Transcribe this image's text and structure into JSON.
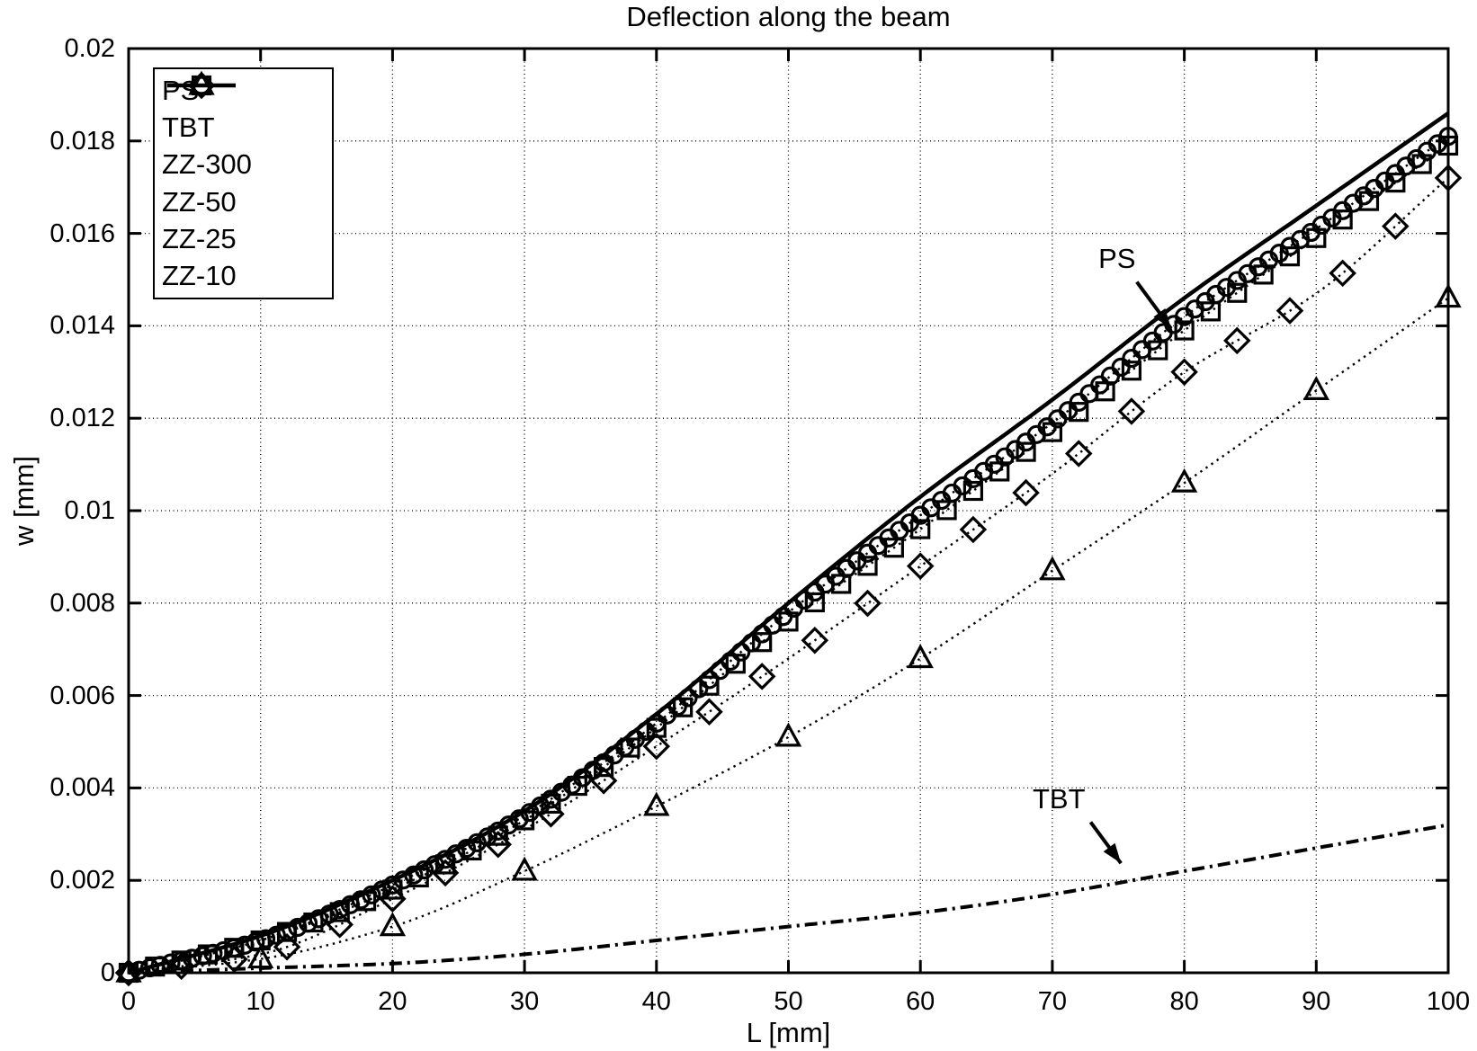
{
  "colors": {
    "foreground": "#000000",
    "background": "#ffffff"
  },
  "legend": {
    "position": "top-left",
    "entries": [
      "PS",
      "TBT",
      "ZZ-300",
      "ZZ-50",
      "ZZ-25",
      "ZZ-10"
    ]
  },
  "annotations": [
    {
      "text": "PS",
      "text_at": {
        "L": 74.9,
        "w": 0.01545
      },
      "arrow_from": {
        "L": 76.4,
        "w": 0.01495
      },
      "arrow_to": {
        "L": 79.0,
        "w": 0.01394
      }
    },
    {
      "text": "TBT",
      "text_at": {
        "L": 70.5,
        "w": 0.00375
      },
      "arrow_from": {
        "L": 72.9,
        "w": 0.00326
      },
      "arrow_to": {
        "L": 75.2,
        "w": 0.00237
      }
    }
  ],
  "chart_data": {
    "type": "line",
    "title": "Deflection along the beam",
    "xlabel": "L [mm]",
    "ylabel": "w [mm]",
    "xlim": [
      0,
      100
    ],
    "ylim": [
      0,
      0.02
    ],
    "grid": true,
    "x_ticks": {
      "values": [
        0,
        10,
        20,
        30,
        40,
        50,
        60,
        70,
        80,
        90,
        100
      ],
      "labels": [
        "0",
        "10",
        "20",
        "30",
        "40",
        "50",
        "60",
        "70",
        "80",
        "90",
        "100"
      ]
    },
    "y_ticks": {
      "values": [
        0,
        0.002,
        0.004,
        0.006,
        0.008,
        0.01,
        0.012,
        0.014,
        0.016,
        0.018,
        0.02
      ],
      "labels": [
        "0",
        "0.002",
        "0.004",
        "0.006",
        "0.008",
        "0.01",
        "0.012",
        "0.014",
        "0.016",
        "0.018",
        "0.02"
      ]
    },
    "x": [
      0,
      10,
      20,
      30,
      40,
      50,
      60,
      70,
      80,
      90,
      100
    ],
    "series": [
      {
        "name": "PS",
        "linestyle": "solid",
        "marker": "none",
        "values": [
          0,
          0.0008,
          0.002,
          0.0035,
          0.0056,
          0.008,
          0.0103,
          0.0124,
          0.0146,
          0.0166,
          0.0186
        ]
      },
      {
        "name": "TBT",
        "linestyle": "dashdot",
        "marker": "none",
        "values": [
          0,
          0.0001,
          0.0002,
          0.0004,
          0.0007,
          0.001,
          0.0013,
          0.0017,
          0.0022,
          0.0027,
          0.0032
        ]
      },
      {
        "name": "ZZ-300",
        "linestyle": "dotted",
        "marker": "circle",
        "marker_step_mm": 0.8,
        "values": [
          0,
          0.0007,
          0.0019,
          0.0034,
          0.0054,
          0.0078,
          0.0099,
          0.0119,
          0.0142,
          0.0161,
          0.0181
        ]
      },
      {
        "name": "ZZ-50",
        "linestyle": "dotted",
        "marker": "square",
        "marker_step_mm": 2,
        "values": [
          0,
          0.0007,
          0.0018,
          0.0033,
          0.0053,
          0.0076,
          0.0096,
          0.0117,
          0.0139,
          0.0159,
          0.0179
        ]
      },
      {
        "name": "ZZ-25",
        "linestyle": "dotted",
        "marker": "diamond",
        "marker_step_mm": 4,
        "values": [
          0,
          0.0004,
          0.0016,
          0.0031,
          0.0049,
          0.0068,
          0.0088,
          0.0108,
          0.013,
          0.0147,
          0.0172
        ]
      },
      {
        "name": "ZZ-10",
        "linestyle": "dotted",
        "marker": "triangle",
        "marker_step_mm": 10,
        "values": [
          0,
          0.0003,
          0.001,
          0.0022,
          0.0036,
          0.0051,
          0.0068,
          0.0087,
          0.0106,
          0.0126,
          0.0146
        ]
      }
    ]
  }
}
